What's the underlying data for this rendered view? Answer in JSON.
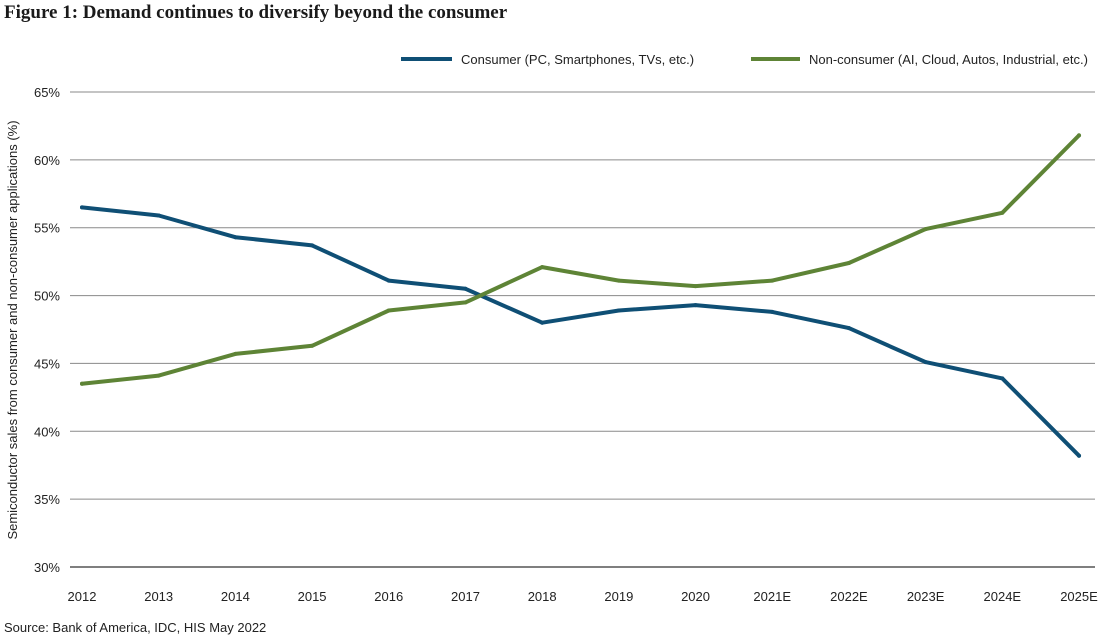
{
  "figure": {
    "title": "Figure 1: Demand continues to diversify beyond the consumer",
    "source": "Source: Bank of America, IDC, HIS May 2022"
  },
  "chart_data": {
    "type": "line",
    "title": "Figure 1: Demand continues to diversify beyond the consumer",
    "xlabel": "",
    "ylabel": "Semiconductor sales from consumer and non-consumer applications (%)",
    "categories": [
      "2012",
      "2013",
      "2014",
      "2015",
      "2016",
      "2017",
      "2018",
      "2019",
      "2020",
      "2021E",
      "2022E",
      "2023E",
      "2024E",
      "2025E"
    ],
    "y_ticks": [
      30,
      35,
      40,
      45,
      50,
      55,
      60,
      65
    ],
    "y_tick_labels": [
      "30%",
      "35%",
      "40%",
      "45%",
      "50%",
      "55%",
      "60%",
      "65%"
    ],
    "ylim": [
      30,
      65
    ],
    "grid": true,
    "legend_position": "top-right",
    "series": [
      {
        "name": "Consumer (PC, Smartphones, TVs, etc.)",
        "color": "#0f4f75",
        "values": [
          56.5,
          55.9,
          54.3,
          53.7,
          51.1,
          50.5,
          48.0,
          48.9,
          49.3,
          48.8,
          47.6,
          45.1,
          43.9,
          38.2
        ]
      },
      {
        "name": "Non-consumer (AI, Cloud, Autos, Industrial, etc.)",
        "color": "#5e8436",
        "values": [
          43.5,
          44.1,
          45.7,
          46.3,
          48.9,
          49.5,
          52.1,
          51.1,
          50.7,
          51.1,
          52.4,
          54.9,
          56.1,
          61.8
        ]
      }
    ]
  }
}
